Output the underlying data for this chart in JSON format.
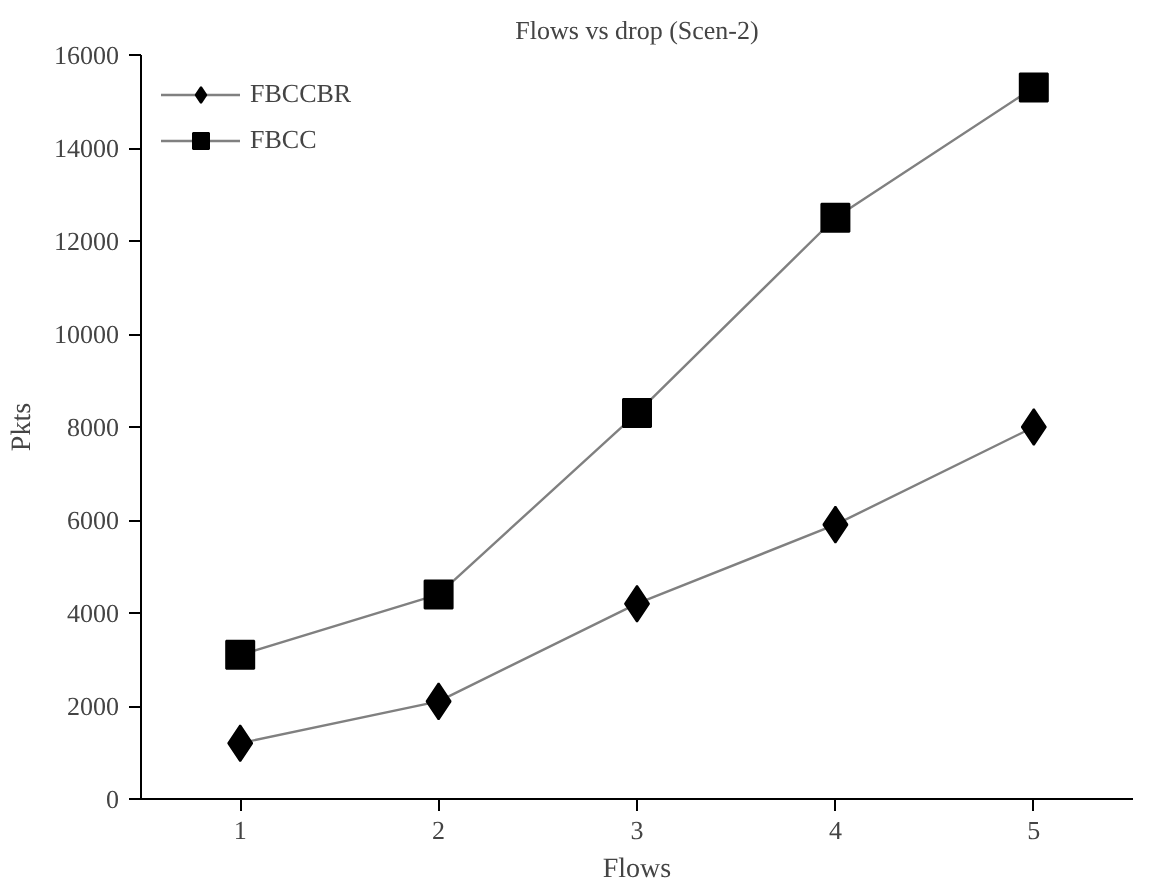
{
  "chart_data": {
    "type": "line",
    "title": "Flows vs drop (Scen-2)",
    "xlabel": "Flows",
    "ylabel": "Pkts",
    "categories": [
      "1",
      "2",
      "3",
      "4",
      "5"
    ],
    "series": [
      {
        "name": "FBCCBR",
        "color": "#000000",
        "marker": "diamond",
        "values": [
          1200,
          2100,
          4200,
          5900,
          8000
        ]
      },
      {
        "name": "FBCC",
        "color": "#000000",
        "marker": "square",
        "values": [
          3100,
          4400,
          8300,
          12500,
          15300
        ]
      }
    ],
    "ylim": [
      0,
      16000
    ],
    "yticks": [
      0,
      2000,
      4000,
      6000,
      8000,
      10000,
      12000,
      14000,
      16000
    ],
    "grid": false,
    "legend": "top left",
    "line_style": "solid"
  }
}
